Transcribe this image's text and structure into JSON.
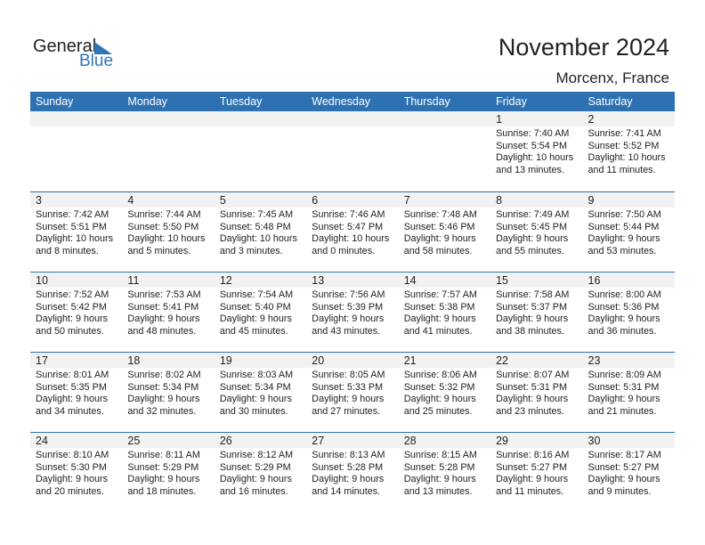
{
  "logo": {
    "text1": "General",
    "text2": "Blue"
  },
  "title": "November 2024",
  "location": "Morcenx, France",
  "colors": {
    "header": "#2e71b3",
    "accent": "#2e75b6",
    "day_band": "#f2f2f2"
  },
  "weekdays": [
    "Sunday",
    "Monday",
    "Tuesday",
    "Wednesday",
    "Thursday",
    "Friday",
    "Saturday"
  ],
  "weeks": [
    [
      null,
      null,
      null,
      null,
      null,
      {
        "day": "1",
        "sunrise": "Sunrise: 7:40 AM",
        "sunset": "Sunset: 5:54 PM",
        "daylight1": "Daylight: 10 hours",
        "daylight2": "and 13 minutes."
      },
      {
        "day": "2",
        "sunrise": "Sunrise: 7:41 AM",
        "sunset": "Sunset: 5:52 PM",
        "daylight1": "Daylight: 10 hours",
        "daylight2": "and 11 minutes."
      }
    ],
    [
      {
        "day": "3",
        "sunrise": "Sunrise: 7:42 AM",
        "sunset": "Sunset: 5:51 PM",
        "daylight1": "Daylight: 10 hours",
        "daylight2": "and 8 minutes."
      },
      {
        "day": "4",
        "sunrise": "Sunrise: 7:44 AM",
        "sunset": "Sunset: 5:50 PM",
        "daylight1": "Daylight: 10 hours",
        "daylight2": "and 5 minutes."
      },
      {
        "day": "5",
        "sunrise": "Sunrise: 7:45 AM",
        "sunset": "Sunset: 5:48 PM",
        "daylight1": "Daylight: 10 hours",
        "daylight2": "and 3 minutes."
      },
      {
        "day": "6",
        "sunrise": "Sunrise: 7:46 AM",
        "sunset": "Sunset: 5:47 PM",
        "daylight1": "Daylight: 10 hours",
        "daylight2": "and 0 minutes."
      },
      {
        "day": "7",
        "sunrise": "Sunrise: 7:48 AM",
        "sunset": "Sunset: 5:46 PM",
        "daylight1": "Daylight: 9 hours",
        "daylight2": "and 58 minutes."
      },
      {
        "day": "8",
        "sunrise": "Sunrise: 7:49 AM",
        "sunset": "Sunset: 5:45 PM",
        "daylight1": "Daylight: 9 hours",
        "daylight2": "and 55 minutes."
      },
      {
        "day": "9",
        "sunrise": "Sunrise: 7:50 AM",
        "sunset": "Sunset: 5:44 PM",
        "daylight1": "Daylight: 9 hours",
        "daylight2": "and 53 minutes."
      }
    ],
    [
      {
        "day": "10",
        "sunrise": "Sunrise: 7:52 AM",
        "sunset": "Sunset: 5:42 PM",
        "daylight1": "Daylight: 9 hours",
        "daylight2": "and 50 minutes."
      },
      {
        "day": "11",
        "sunrise": "Sunrise: 7:53 AM",
        "sunset": "Sunset: 5:41 PM",
        "daylight1": "Daylight: 9 hours",
        "daylight2": "and 48 minutes."
      },
      {
        "day": "12",
        "sunrise": "Sunrise: 7:54 AM",
        "sunset": "Sunset: 5:40 PM",
        "daylight1": "Daylight: 9 hours",
        "daylight2": "and 45 minutes."
      },
      {
        "day": "13",
        "sunrise": "Sunrise: 7:56 AM",
        "sunset": "Sunset: 5:39 PM",
        "daylight1": "Daylight: 9 hours",
        "daylight2": "and 43 minutes."
      },
      {
        "day": "14",
        "sunrise": "Sunrise: 7:57 AM",
        "sunset": "Sunset: 5:38 PM",
        "daylight1": "Daylight: 9 hours",
        "daylight2": "and 41 minutes."
      },
      {
        "day": "15",
        "sunrise": "Sunrise: 7:58 AM",
        "sunset": "Sunset: 5:37 PM",
        "daylight1": "Daylight: 9 hours",
        "daylight2": "and 38 minutes."
      },
      {
        "day": "16",
        "sunrise": "Sunrise: 8:00 AM",
        "sunset": "Sunset: 5:36 PM",
        "daylight1": "Daylight: 9 hours",
        "daylight2": "and 36 minutes."
      }
    ],
    [
      {
        "day": "17",
        "sunrise": "Sunrise: 8:01 AM",
        "sunset": "Sunset: 5:35 PM",
        "daylight1": "Daylight: 9 hours",
        "daylight2": "and 34 minutes."
      },
      {
        "day": "18",
        "sunrise": "Sunrise: 8:02 AM",
        "sunset": "Sunset: 5:34 PM",
        "daylight1": "Daylight: 9 hours",
        "daylight2": "and 32 minutes."
      },
      {
        "day": "19",
        "sunrise": "Sunrise: 8:03 AM",
        "sunset": "Sunset: 5:34 PM",
        "daylight1": "Daylight: 9 hours",
        "daylight2": "and 30 minutes."
      },
      {
        "day": "20",
        "sunrise": "Sunrise: 8:05 AM",
        "sunset": "Sunset: 5:33 PM",
        "daylight1": "Daylight: 9 hours",
        "daylight2": "and 27 minutes."
      },
      {
        "day": "21",
        "sunrise": "Sunrise: 8:06 AM",
        "sunset": "Sunset: 5:32 PM",
        "daylight1": "Daylight: 9 hours",
        "daylight2": "and 25 minutes."
      },
      {
        "day": "22",
        "sunrise": "Sunrise: 8:07 AM",
        "sunset": "Sunset: 5:31 PM",
        "daylight1": "Daylight: 9 hours",
        "daylight2": "and 23 minutes."
      },
      {
        "day": "23",
        "sunrise": "Sunrise: 8:09 AM",
        "sunset": "Sunset: 5:31 PM",
        "daylight1": "Daylight: 9 hours",
        "daylight2": "and 21 minutes."
      }
    ],
    [
      {
        "day": "24",
        "sunrise": "Sunrise: 8:10 AM",
        "sunset": "Sunset: 5:30 PM",
        "daylight1": "Daylight: 9 hours",
        "daylight2": "and 20 minutes."
      },
      {
        "day": "25",
        "sunrise": "Sunrise: 8:11 AM",
        "sunset": "Sunset: 5:29 PM",
        "daylight1": "Daylight: 9 hours",
        "daylight2": "and 18 minutes."
      },
      {
        "day": "26",
        "sunrise": "Sunrise: 8:12 AM",
        "sunset": "Sunset: 5:29 PM",
        "daylight1": "Daylight: 9 hours",
        "daylight2": "and 16 minutes."
      },
      {
        "day": "27",
        "sunrise": "Sunrise: 8:13 AM",
        "sunset": "Sunset: 5:28 PM",
        "daylight1": "Daylight: 9 hours",
        "daylight2": "and 14 minutes."
      },
      {
        "day": "28",
        "sunrise": "Sunrise: 8:15 AM",
        "sunset": "Sunset: 5:28 PM",
        "daylight1": "Daylight: 9 hours",
        "daylight2": "and 13 minutes."
      },
      {
        "day": "29",
        "sunrise": "Sunrise: 8:16 AM",
        "sunset": "Sunset: 5:27 PM",
        "daylight1": "Daylight: 9 hours",
        "daylight2": "and 11 minutes."
      },
      {
        "day": "30",
        "sunrise": "Sunrise: 8:17 AM",
        "sunset": "Sunset: 5:27 PM",
        "daylight1": "Daylight: 9 hours",
        "daylight2": "and 9 minutes."
      }
    ]
  ]
}
